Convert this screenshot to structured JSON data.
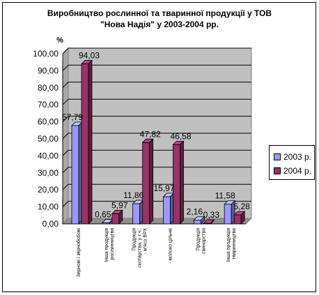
{
  "title_line1": "Виробництво рослинної та тваринної продукції у ТОВ",
  "title_line2": "\"Нова Надія\" у 2003-2004 рр.",
  "chart_data": {
    "type": "bar",
    "y_unit_label": "%",
    "ylim": [
      0,
      100
    ],
    "y_ticks": [
      "0,00",
      "10,00",
      "20,00",
      "30,00",
      "40,00",
      "50,00",
      "60,00",
      "70,00",
      "80,00",
      "90,00",
      "100,00"
    ],
    "grid": true,
    "legend_position": "right",
    "categories": [
      [
        "Зернові і зернобобові"
      ],
      [
        "Інша продукція",
        "рослинництва"
      ],
      [
        "Продукція",
        "скотарства, у т.ч.:",
        "- м'ясо ВРХ"
      ],
      [
        "- молоко цільне"
      ],
      [
        "Продукція",
        "свинарства"
      ],
      [
        "Інша продукція",
        "тваринництва"
      ]
    ],
    "series": [
      {
        "name": "2003 р.",
        "color": "#9999ff",
        "values": [
          57.79,
          0.65,
          11.86,
          15.97,
          2.16,
          11.58
        ],
        "labels": [
          "57,79",
          "0,65",
          "11,86",
          "15,97",
          "2,16",
          "11,58"
        ]
      },
      {
        "name": "2004 р.",
        "color": "#993366",
        "values": [
          94.03,
          5.97,
          47.82,
          46.58,
          0.33,
          5.28
        ],
        "labels": [
          "94,03",
          "5,97",
          "47,82",
          "46,58",
          "0,33",
          "5,28"
        ]
      }
    ]
  }
}
